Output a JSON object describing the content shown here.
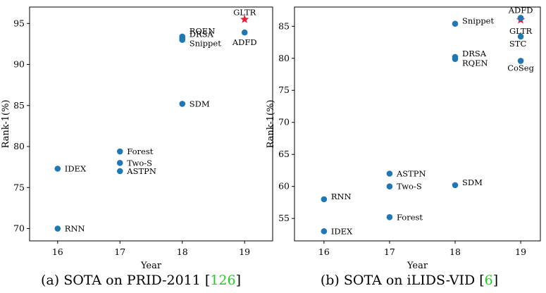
{
  "chart_data": [
    {
      "type": "scatter",
      "caption": {
        "prefix": "(a) SOTA on PRID-2011 [",
        "ref": "126",
        "suffix": "]"
      },
      "xlabel": "Year",
      "ylabel": "Rank-1(%)",
      "xticks": [
        16,
        17,
        18,
        19
      ],
      "yticks": [
        70,
        75,
        80,
        85,
        90,
        95
      ],
      "xlim": [
        15.55,
        19.45
      ],
      "ylim": [
        68.5,
        97.0
      ],
      "colors": {
        "marker": "#1f77b4",
        "highlight": "#e8223a"
      },
      "points": [
        {
          "label": "RNN",
          "x": 16,
          "y": 70.0
        },
        {
          "label": "IDEX",
          "x": 16,
          "y": 77.3
        },
        {
          "label": "Forest",
          "x": 17,
          "y": 79.4
        },
        {
          "label": "Two-S",
          "x": 17,
          "y": 78.0
        },
        {
          "label": "ASTPN",
          "x": 17,
          "y": 77.0
        },
        {
          "label": "SDM",
          "x": 18,
          "y": 85.2
        },
        {
          "label": "RQEN",
          "x": 18,
          "y": 93.4
        },
        {
          "label": "DRSA",
          "x": 18,
          "y": 93.2
        },
        {
          "label": "Snippet",
          "x": 18,
          "y": 93.0
        },
        {
          "label": "ADFD",
          "x": 19,
          "y": 93.9
        },
        {
          "label": "GLTR",
          "x": 19,
          "y": 95.5,
          "marker": "star"
        }
      ]
    },
    {
      "type": "scatter",
      "caption": {
        "prefix": "(b) SOTA on iLIDS-VID [",
        "ref": "6",
        "suffix": "]"
      },
      "xlabel": "Year",
      "ylabel": "Rank-1(%)",
      "xticks": [
        16,
        17,
        18,
        19
      ],
      "yticks": [
        55,
        60,
        65,
        70,
        75,
        80,
        85
      ],
      "xlim": [
        15.55,
        19.3
      ],
      "ylim": [
        51.5,
        88.0
      ],
      "colors": {
        "marker": "#1f77b4",
        "highlight": "#e8223a"
      },
      "points": [
        {
          "label": "IDEX",
          "x": 16,
          "y": 53.0
        },
        {
          "label": "RNN",
          "x": 16,
          "y": 58.0
        },
        {
          "label": "Forest",
          "x": 17,
          "y": 55.2
        },
        {
          "label": "Two-S",
          "x": 17,
          "y": 60.0
        },
        {
          "label": "ASTPN",
          "x": 17,
          "y": 62.0
        },
        {
          "label": "SDM",
          "x": 18,
          "y": 60.2
        },
        {
          "label": "RQEN",
          "x": 18,
          "y": 79.9
        },
        {
          "label": "DRSA",
          "x": 18,
          "y": 80.2
        },
        {
          "label": "Snippet",
          "x": 18,
          "y": 85.4
        },
        {
          "label": "CoSeg",
          "x": 19,
          "y": 79.6
        },
        {
          "label": "STC",
          "x": 19,
          "y": 83.4
        },
        {
          "label": "GLTR",
          "x": 19,
          "y": 86.0,
          "marker": "star"
        },
        {
          "label": "ADFD",
          "x": 19,
          "y": 86.3
        }
      ]
    }
  ]
}
